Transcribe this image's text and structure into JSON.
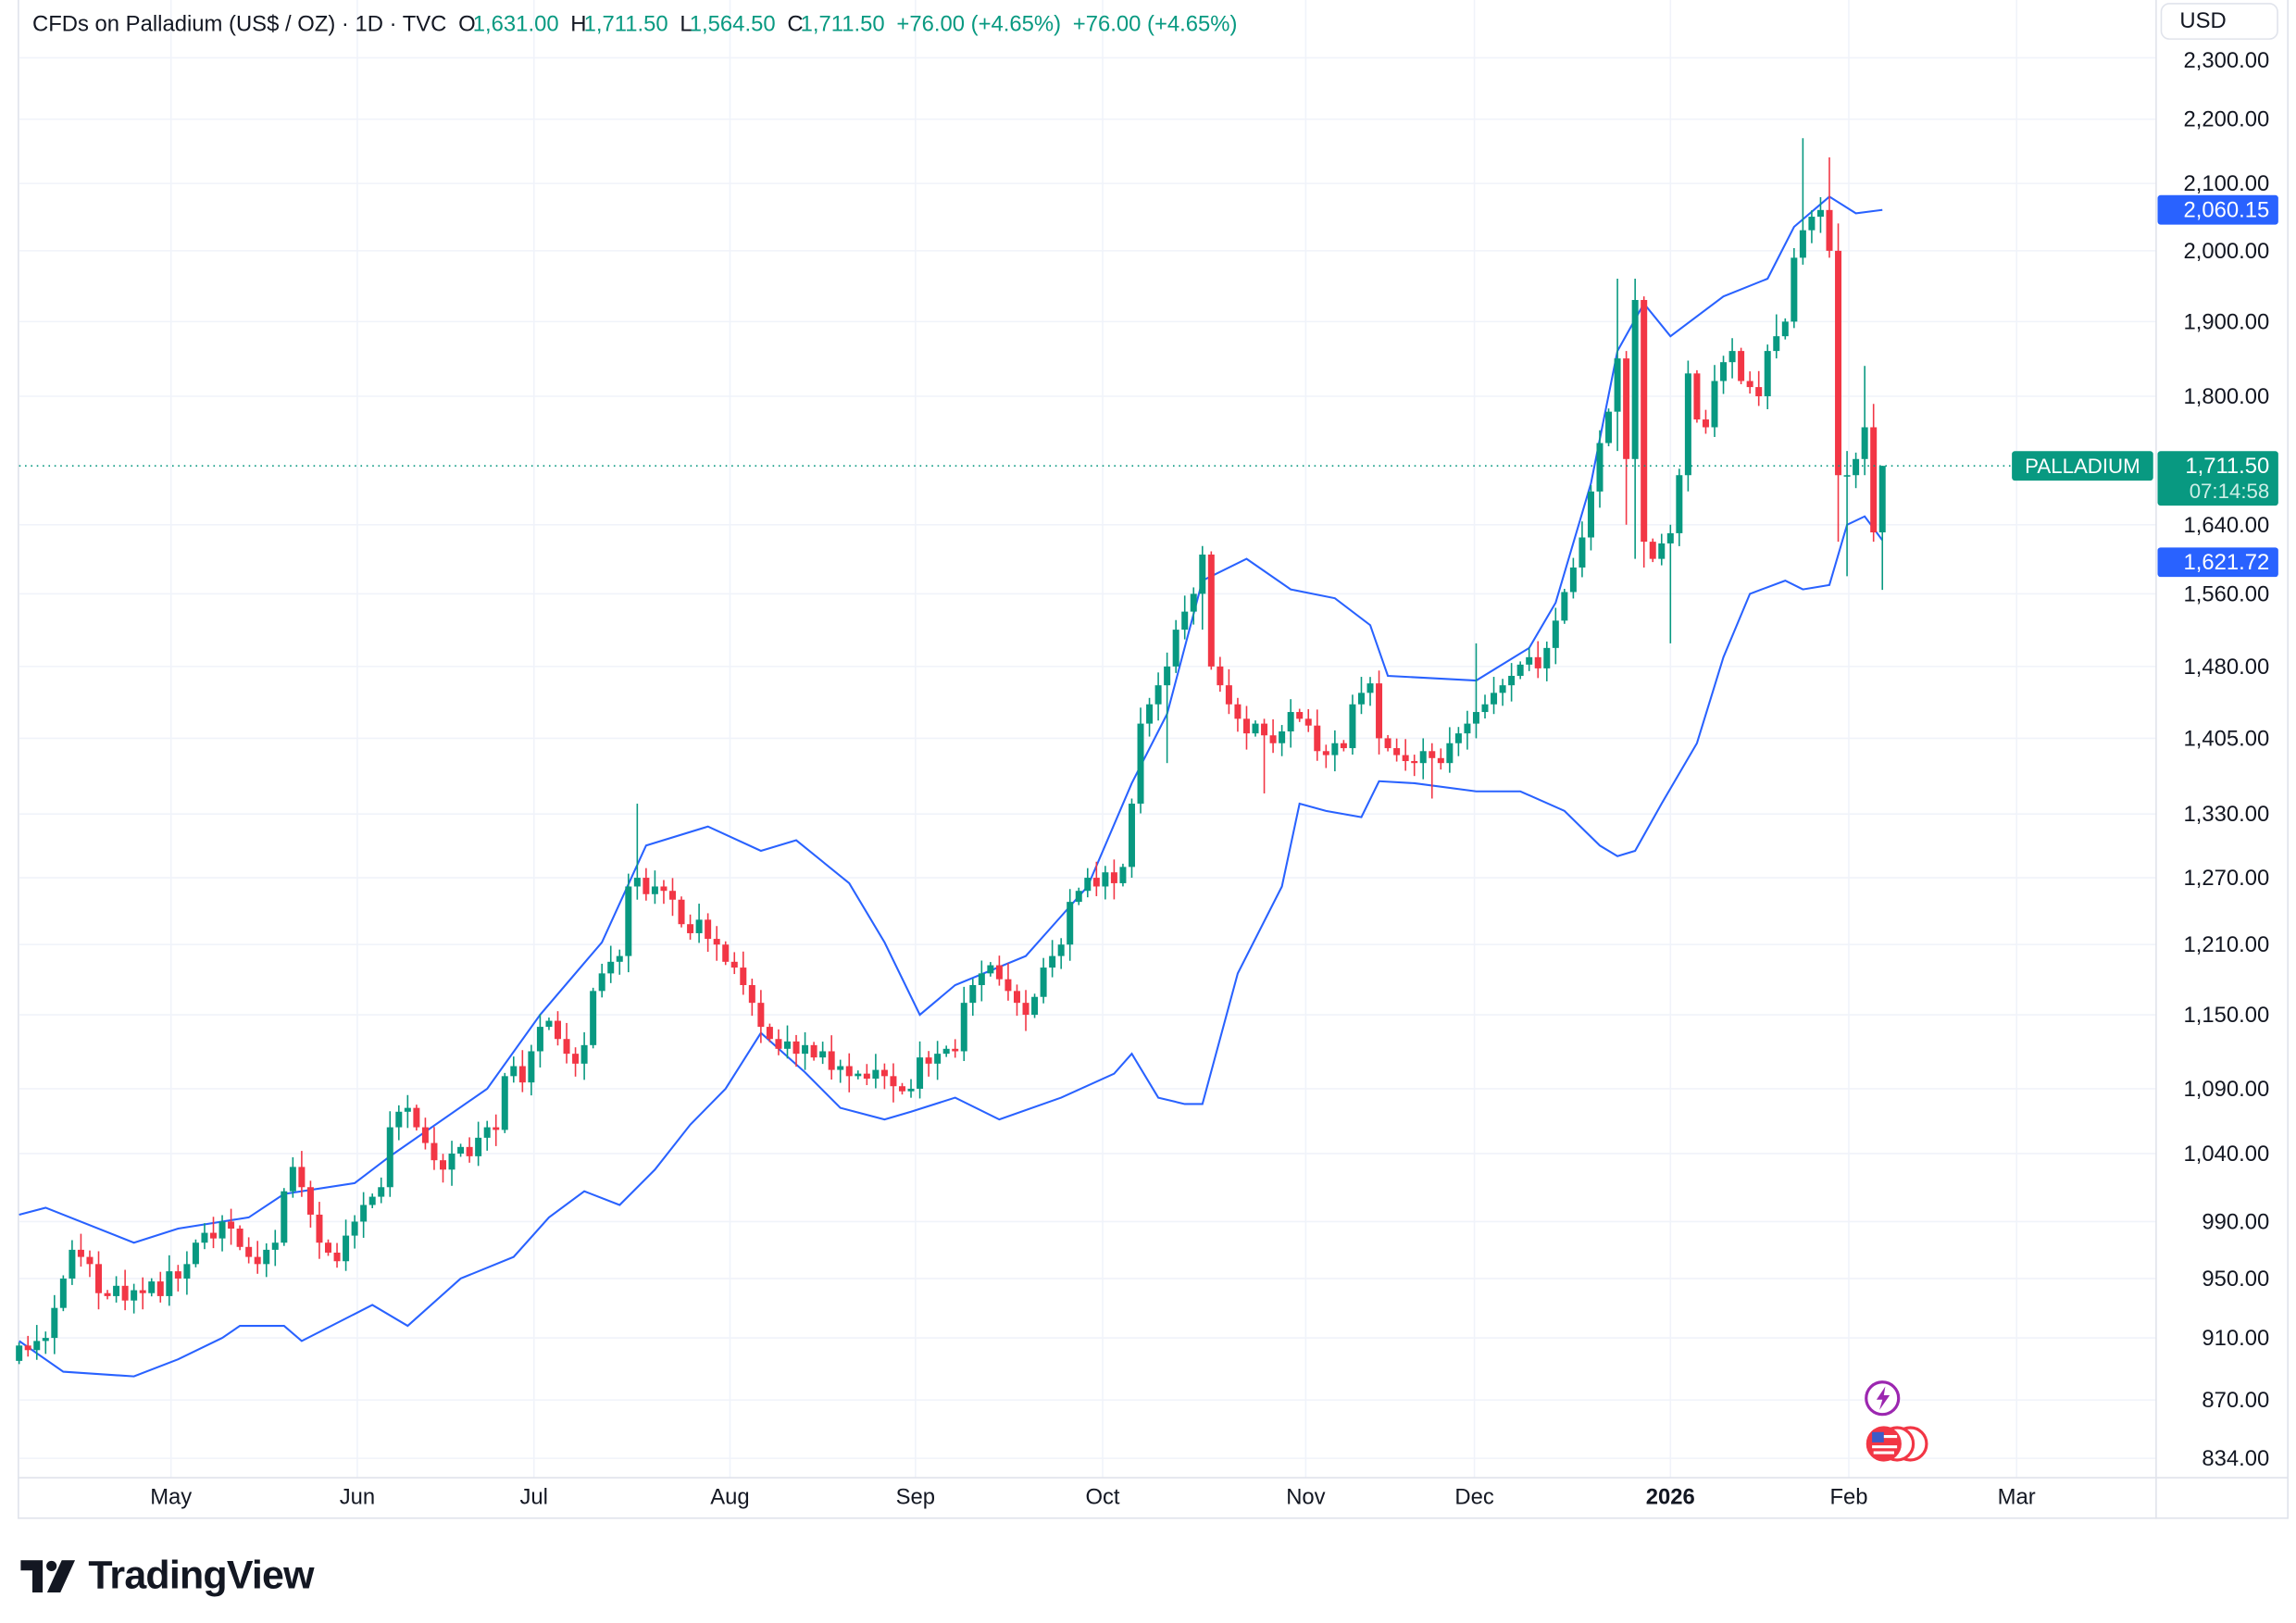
{
  "header": {
    "symbol": "CFDs on Palladium (US$ / OZ) · 1D · TVC",
    "o_label": "O",
    "o": "1,631.00",
    "h_label": "H",
    "h": "1,711.50",
    "l_label": "L",
    "l": "1,564.50",
    "c_label": "C",
    "c": "1,711.50",
    "change": "+76.00 (+4.65%)",
    "change2": "+76.00 (+4.65%)"
  },
  "currency_button": "USD",
  "brand": "TradingView",
  "price_tag": {
    "name": "PALLADIUM",
    "price": "1,711.50",
    "countdown": "07:14:58"
  },
  "band_tags": {
    "upper": "2,060.15",
    "lower": "1,621.72"
  },
  "colors": {
    "up": "#089981",
    "down": "#f23645",
    "band": "#2962ff",
    "grid": "#f0f3fa"
  },
  "chart_data": {
    "type": "candlestick",
    "title": "CFDs on Palladium (US$ / OZ) · 1D · TVC",
    "scale": "log",
    "ylim": [
      834,
      2320
    ],
    "y_ticks": [
      "2,300.00",
      "2,200.00",
      "2,100.00",
      "2,000.00",
      "1,900.00",
      "1,800.00",
      "1,640.00",
      "1,560.00",
      "1,480.00",
      "1,405.00",
      "1,330.00",
      "1,270.00",
      "1,210.00",
      "1,150.00",
      "1,090.00",
      "1,040.00",
      "990.00",
      "950.00",
      "910.00",
      "870.00",
      "834.00"
    ],
    "x_ticks": [
      {
        "label": "May",
        "index": 17.2
      },
      {
        "label": "Jun",
        "index": 38.3
      },
      {
        "label": "Jul",
        "index": 58.3
      },
      {
        "label": "Aug",
        "index": 80.5
      },
      {
        "label": "Sep",
        "index": 101.5
      },
      {
        "label": "Oct",
        "index": 122.7
      },
      {
        "label": "Nov",
        "index": 145.7
      },
      {
        "label": "Dec",
        "index": 164.8
      },
      {
        "label": "2026",
        "index": 187,
        "bold": true
      },
      {
        "label": "Feb",
        "index": 207.2
      },
      {
        "label": "Mar",
        "index": 226.2
      }
    ],
    "first_open": 895,
    "default_wick_pct": 0.7,
    "closes": [
      905,
      902,
      908,
      910,
      930,
      950,
      970,
      965,
      960,
      940,
      938,
      945,
      935,
      942,
      940,
      948,
      938,
      955,
      950,
      960,
      975,
      982,
      978,
      990,
      985,
      972,
      965,
      960,
      970,
      975,
      1012,
      1030,
      1015,
      995,
      975,
      968,
      962,
      980,
      990,
      1002,
      1008,
      1015,
      1060,
      1072,
      1075,
      1060,
      1048,
      1035,
      1028,
      1040,
      1045,
      1038,
      1052,
      1060,
      1058,
      1100,
      1108,
      1095,
      1120,
      1140,
      1145,
      1130,
      1118,
      1110,
      1125,
      1170,
      1185,
      1195,
      1200,
      1262,
      1270,
      1255,
      1262,
      1258,
      1250,
      1228,
      1220,
      1232,
      1215,
      1210,
      1195,
      1190,
      1175,
      1160,
      1140,
      1130,
      1122,
      1128,
      1118,
      1125,
      1115,
      1120,
      1105,
      1108,
      1100,
      1102,
      1098,
      1105,
      1100,
      1092,
      1088,
      1090,
      1115,
      1110,
      1118,
      1122,
      1120,
      1160,
      1175,
      1185,
      1192,
      1180,
      1170,
      1160,
      1150,
      1165,
      1190,
      1200,
      1210,
      1248,
      1258,
      1270,
      1262,
      1275,
      1265,
      1280,
      1340,
      1420,
      1440,
      1460,
      1480,
      1520,
      1540,
      1560,
      1605,
      1480,
      1460,
      1440,
      1425,
      1410,
      1420,
      1408,
      1400,
      1412,
      1432,
      1425,
      1418,
      1392,
      1388,
      1400,
      1395,
      1440,
      1452,
      1462,
      1405,
      1395,
      1388,
      1382,
      1380,
      1392,
      1385,
      1380,
      1400,
      1410,
      1420,
      1432,
      1440,
      1452,
      1460,
      1470,
      1482,
      1490,
      1478,
      1500,
      1530,
      1562,
      1590,
      1625,
      1680,
      1740,
      1780,
      1850,
      1720,
      1930,
      1620,
      1600,
      1618,
      1630,
      1700,
      1830,
      1770,
      1760,
      1820,
      1845,
      1860,
      1820,
      1812,
      1800,
      1860,
      1880,
      1900,
      1990,
      2030,
      2050,
      2060,
      2000,
      1700,
      1700,
      1720,
      1760,
      1631,
      1711.5
    ],
    "wick_overrides": {
      "70": [
        1340,
        1250
      ],
      "126": [
        1345,
        1270
      ],
      "130": [
        1495,
        1380
      ],
      "134": [
        1615,
        1520
      ],
      "141": [
        1425,
        1350
      ],
      "160": [
        1400,
        1345
      ],
      "165": [
        1505,
        1405
      ],
      "181": [
        1960,
        1730
      ],
      "182": [
        1860,
        1640
      ],
      "183": [
        1960,
        1600
      ],
      "184": [
        1935,
        1590
      ],
      "187": [
        1640,
        1505
      ],
      "199": [
        1910,
        1850
      ],
      "202": [
        2170,
        1980
      ],
      "205": [
        2140,
        1990
      ],
      "206": [
        2040,
        1620
      ],
      "207": [
        1730,
        1580
      ],
      "209": [
        1840,
        1700
      ],
      "210": [
        1790,
        1620
      ],
      "211": [
        1711.5,
        1564.5
      ]
    },
    "bollinger_upper": [
      [
        0,
        995
      ],
      [
        3,
        1000
      ],
      [
        13,
        975
      ],
      [
        18,
        985
      ],
      [
        26,
        993
      ],
      [
        30,
        1010
      ],
      [
        38,
        1018
      ],
      [
        42,
        1038
      ],
      [
        53,
        1090
      ],
      [
        59,
        1150
      ],
      [
        66,
        1212
      ],
      [
        71,
        1300
      ],
      [
        78,
        1318
      ],
      [
        84,
        1295
      ],
      [
        88,
        1305
      ],
      [
        94,
        1265
      ],
      [
        98,
        1212
      ],
      [
        102,
        1150
      ],
      [
        106,
        1175
      ],
      [
        114,
        1200
      ],
      [
        121,
        1262
      ],
      [
        126,
        1360
      ],
      [
        130,
        1430
      ],
      [
        134,
        1575
      ],
      [
        139,
        1600
      ],
      [
        144,
        1565
      ],
      [
        149,
        1555
      ],
      [
        153,
        1525
      ],
      [
        155,
        1470
      ],
      [
        165,
        1465
      ],
      [
        171,
        1500
      ],
      [
        174,
        1550
      ],
      [
        178,
        1690
      ],
      [
        181,
        1860
      ],
      [
        184,
        1925
      ],
      [
        187,
        1880
      ],
      [
        193,
        1935
      ],
      [
        198,
        1960
      ],
      [
        201,
        2035
      ],
      [
        205,
        2080
      ],
      [
        208,
        2055
      ],
      [
        211,
        2060.15
      ]
    ],
    "bollinger_lower": [
      [
        0,
        908
      ],
      [
        5,
        888
      ],
      [
        13,
        885
      ],
      [
        18,
        896
      ],
      [
        23,
        910
      ],
      [
        25,
        918
      ],
      [
        30,
        918
      ],
      [
        32,
        908
      ],
      [
        40,
        932
      ],
      [
        44,
        918
      ],
      [
        50,
        950
      ],
      [
        56,
        965
      ],
      [
        60,
        993
      ],
      [
        64,
        1012
      ],
      [
        68,
        1002
      ],
      [
        72,
        1028
      ],
      [
        76,
        1062
      ],
      [
        80,
        1090
      ],
      [
        84,
        1135
      ],
      [
        89,
        1103
      ],
      [
        93,
        1075
      ],
      [
        98,
        1066
      ],
      [
        101,
        1072
      ],
      [
        106,
        1083
      ],
      [
        111,
        1066
      ],
      [
        118,
        1083
      ],
      [
        124,
        1102
      ],
      [
        126,
        1118
      ],
      [
        129,
        1083
      ],
      [
        132,
        1078
      ],
      [
        134,
        1078
      ],
      [
        138,
        1185
      ],
      [
        143,
        1262
      ],
      [
        145,
        1340
      ],
      [
        148,
        1333
      ],
      [
        152,
        1327
      ],
      [
        154,
        1362
      ],
      [
        158,
        1360
      ],
      [
        165,
        1352
      ],
      [
        170,
        1352
      ],
      [
        175,
        1333
      ],
      [
        179,
        1300
      ],
      [
        181,
        1290
      ],
      [
        183,
        1295
      ],
      [
        186,
        1340
      ],
      [
        190,
        1400
      ],
      [
        193,
        1490
      ],
      [
        196,
        1560
      ],
      [
        200,
        1575
      ],
      [
        202,
        1565
      ],
      [
        205,
        1570
      ],
      [
        207,
        1640
      ],
      [
        209,
        1650
      ],
      [
        211,
        1621.72
      ]
    ],
    "last_price": 1711.5
  }
}
